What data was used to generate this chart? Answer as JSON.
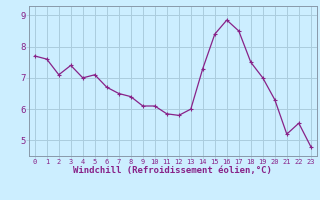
{
  "x": [
    0,
    1,
    2,
    3,
    4,
    5,
    6,
    7,
    8,
    9,
    10,
    11,
    12,
    13,
    14,
    15,
    16,
    17,
    18,
    19,
    20,
    21,
    22,
    23
  ],
  "y": [
    7.7,
    7.6,
    7.1,
    7.4,
    7.0,
    7.1,
    6.7,
    6.5,
    6.4,
    6.1,
    6.1,
    5.85,
    5.8,
    6.0,
    7.3,
    8.4,
    8.85,
    8.5,
    7.5,
    7.0,
    6.3,
    5.2,
    5.55,
    4.8
  ],
  "line_color": "#882288",
  "marker": "+",
  "marker_size": 3,
  "marker_lw": 0.8,
  "bg_color": "#cceeff",
  "grid_color": "#aaccdd",
  "xlabel": "Windchill (Refroidissement éolien,°C)",
  "ylim": [
    4.5,
    9.3
  ],
  "xlim": [
    -0.5,
    23.5
  ],
  "yticks": [
    5,
    6,
    7,
    8,
    9
  ],
  "xticks": [
    0,
    1,
    2,
    3,
    4,
    5,
    6,
    7,
    8,
    9,
    10,
    11,
    12,
    13,
    14,
    15,
    16,
    17,
    18,
    19,
    20,
    21,
    22,
    23
  ],
  "tick_label_color": "#882288",
  "xtick_fontsize": 5.0,
  "ytick_fontsize": 6.5,
  "xlabel_fontsize": 6.5,
  "xlabel_color": "#882288",
  "line_width": 0.9
}
